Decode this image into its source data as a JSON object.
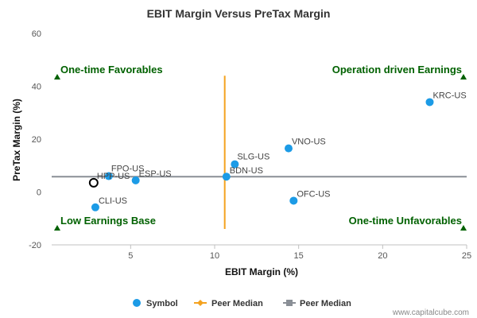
{
  "chart_data": {
    "type": "scatter",
    "title": "EBIT Margin Versus PreTax Margin",
    "xlabel": "EBIT Margin (%)",
    "ylabel": "PreTax Margin (%)",
    "xlim": [
      0.3,
      25
    ],
    "ylim": [
      -20,
      60
    ],
    "xticks": [
      "5",
      "10",
      "15",
      "20",
      "25"
    ],
    "yticks": [
      "-20",
      "0",
      "20",
      "40",
      "60"
    ],
    "grid": false,
    "legend_position": "bottom",
    "points": [
      {
        "label": "KRC-US",
        "x": 22.8,
        "y": 34
      },
      {
        "label": "VNO-US",
        "x": 14.4,
        "y": 16.5
      },
      {
        "label": "SLG-US",
        "x": 11.2,
        "y": 10.5
      },
      {
        "label": "BDN-US",
        "x": 10.7,
        "y": 5.8
      },
      {
        "label": "FPO-US",
        "x": 3.7,
        "y": 6
      },
      {
        "label": "ESP-US",
        "x": 5.3,
        "y": 4.4
      },
      {
        "label": "OFC-US",
        "x": 14.7,
        "y": -3.3
      },
      {
        "label": "CLI-US",
        "x": 2.9,
        "y": -5.8
      }
    ],
    "highlight": {
      "label": "HPP-US",
      "x": 2.8,
      "y": 3.5
    },
    "median_x": 10.6,
    "median_y": 5.8,
    "quadrants": {
      "top_left": "One-time Favorables",
      "top_right": "Operation driven Earnings",
      "bottom_left": "Low Earnings Base",
      "bottom_right": "One-time Unfavorables"
    },
    "legend": [
      {
        "label": "Symbol",
        "color": "#1c9be6"
      },
      {
        "label": "Peer Median",
        "color": "#f4a21f"
      },
      {
        "label": "Peer Median",
        "color": "#8a8f96"
      }
    ],
    "credit": "www.capitalcube.com"
  },
  "colors": {
    "point": "#1c9be6",
    "median_x_line": "#f4a21f",
    "median_y_line": "#8a8f96",
    "quadrant_text": "#006100",
    "triangle": "#006100"
  }
}
